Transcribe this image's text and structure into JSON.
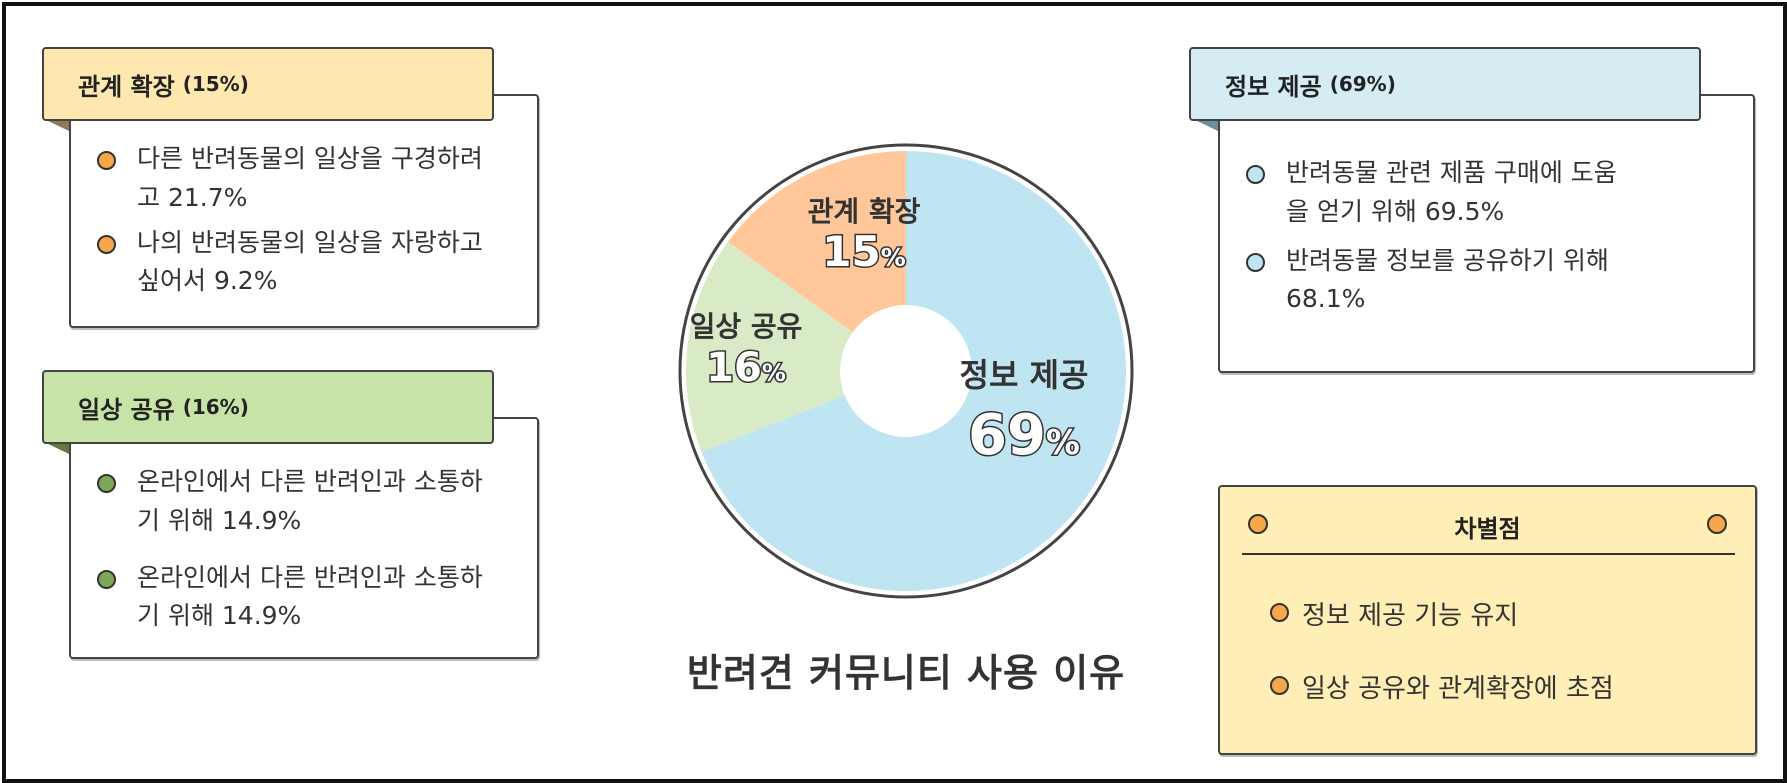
{
  "cards": {
    "relation": {
      "title": "관계 확장",
      "pct": "(15%)",
      "items": [
        {
          "line1": "다른 반려동물의 일상을 구경하려",
          "line2": "고 21.7%"
        },
        {
          "line1": "나의 반려동물의 일상을 자랑하고",
          "line2": "싶어서 9.2%"
        }
      ]
    },
    "daily": {
      "title": "일상 공유",
      "pct": "(16%)",
      "items": [
        {
          "line1": "온라인에서 다른 반려인과 소통하",
          "line2": "기 위해 14.9%"
        },
        {
          "line1": "온라인에서 다른 반려인과 소통하",
          "line2": "기 위해 14.9%"
        }
      ]
    },
    "info": {
      "title": "정보 제공",
      "pct": "(69%)",
      "items": [
        {
          "line1": "반려동물 관련 제품 구매에 도움",
          "line2": "을 얻기 위해 69.5%"
        },
        {
          "line1": "반려동물 정보를 공유하기 위해",
          "line2": "68.1%"
        }
      ]
    }
  },
  "diff": {
    "title": "차별점",
    "items": [
      "정보 제공 기능 유지",
      "일상 공유와 관계확장에 초점"
    ]
  },
  "colors": {
    "info": "#bfe4f2",
    "daily": "#d9ebc6",
    "relation": "#ffc79a",
    "tab_info": "#d6ecf3",
    "tab_daily": "#c8e3a8",
    "tab_relation": "#ffe8b0",
    "dot_orange": "#f5a74a",
    "dot_green": "#7ca85a",
    "dot_blue": "#bfe4f2"
  },
  "chart_data": {
    "type": "pie",
    "title": "반려견 커뮤니티 사용 이유",
    "series": [
      {
        "name": "정보 제공",
        "value": 69,
        "label": "69",
        "unit": "%"
      },
      {
        "name": "일상 공유",
        "value": 16,
        "label": "16",
        "unit": "%"
      },
      {
        "name": "관계 확장",
        "value": 15,
        "label": "15",
        "unit": "%"
      }
    ],
    "donut": true
  }
}
